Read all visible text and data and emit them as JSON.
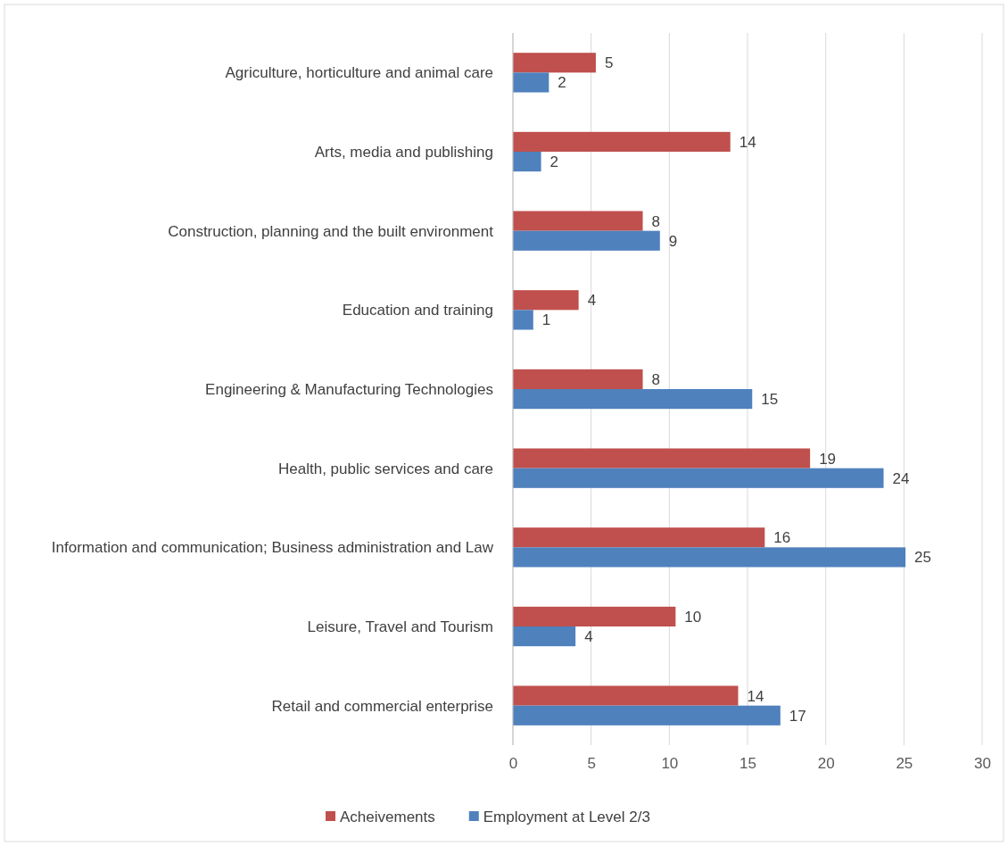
{
  "chart_data": {
    "type": "bar",
    "orientation": "horizontal",
    "categories": [
      "Agriculture, horticulture and animal care",
      "Arts, media and publishing",
      "Construction, planning and the built environment",
      "Education and training",
      "Engineering & Manufacturing Technologies",
      "Health, public services and care",
      "Information and communication; Business administration and Law",
      "Leisure, Travel and Tourism",
      "Retail and commercial enterprise"
    ],
    "series": [
      {
        "name": "Acheivements",
        "color": "#c0504d",
        "values": [
          5.3,
          13.9,
          8.3,
          4.2,
          8.3,
          19.0,
          16.1,
          10.4,
          14.4
        ],
        "value_labels": [
          "5",
          "14",
          "8",
          "4",
          "8",
          "19",
          "16",
          "10",
          "14"
        ]
      },
      {
        "name": "Employment at Level 2/3",
        "color": "#4f81bd",
        "values": [
          2.3,
          1.8,
          9.4,
          1.3,
          15.3,
          23.7,
          25.1,
          4.0,
          17.1
        ],
        "value_labels": [
          "2",
          "2",
          "9",
          "1",
          "15",
          "24",
          "25",
          "4",
          "17"
        ]
      }
    ],
    "xlim": [
      0,
      30
    ],
    "xticks": [
      0,
      5,
      10,
      15,
      20,
      25,
      30
    ],
    "grid": "x",
    "legend": "bottom"
  }
}
